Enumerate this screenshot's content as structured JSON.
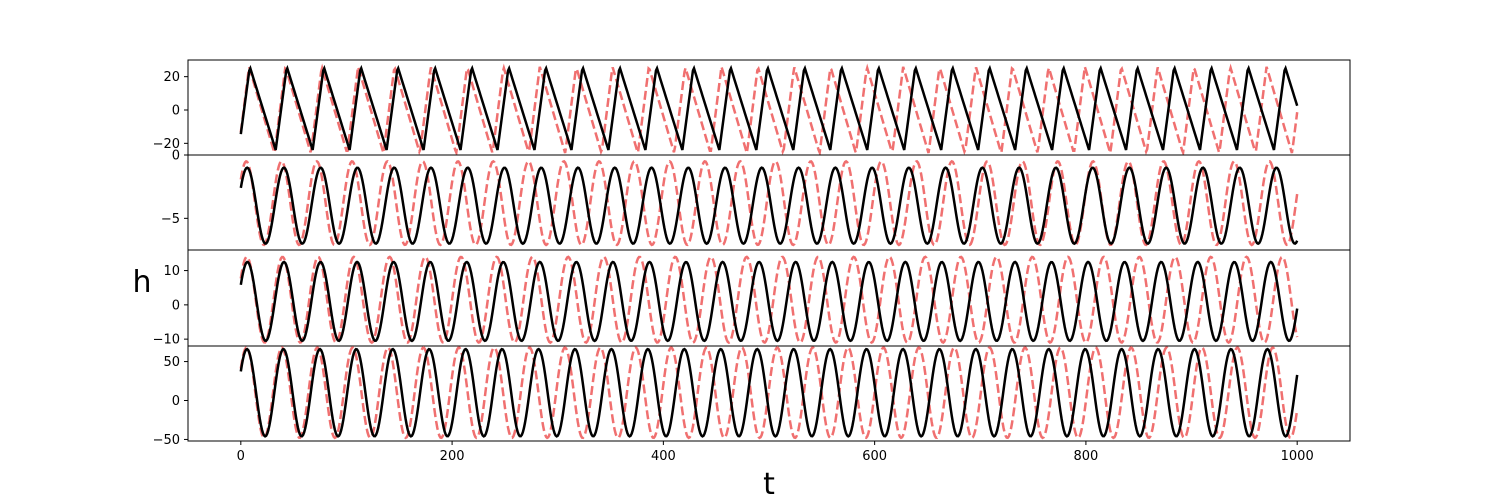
{
  "chart_data": {
    "type": "line",
    "ylabel": "h",
    "xlabel": "t",
    "xlim": [
      -50,
      1050
    ],
    "xticks": [
      0,
      200,
      400,
      600,
      800,
      1000
    ],
    "series_styles": {
      "reference": {
        "color": "#f07070",
        "dash": "dashed"
      },
      "prediction": {
        "color": "#000000",
        "dash": "solid"
      }
    },
    "panels": [
      {
        "ylim": [
          -27,
          30
        ],
        "yticks": [
          -20,
          0,
          20
        ],
        "reference": {
          "period": 34.4,
          "phase": 2.5,
          "amp": 26,
          "offset": 0,
          "shape": "saw",
          "start": 0
        },
        "prediction": {
          "period": 35.0,
          "phase": 2.0,
          "amp": 25,
          "offset": 1,
          "shape": "saw",
          "start": 0
        }
      },
      {
        "ylim": [
          -7.5,
          0
        ],
        "yticks": [
          -5,
          0
        ],
        "reference": {
          "period": 33.4,
          "phase": 3.2,
          "amp": 3.3,
          "offset": -3.8,
          "shape": "sine",
          "start": 0
        },
        "prediction": {
          "period": 34.8,
          "phase": 2.7,
          "amp": 3.0,
          "offset": -4.0,
          "shape": "sine",
          "start": 0
        }
      },
      {
        "ylim": [
          -12,
          16
        ],
        "yticks": [
          -10,
          0,
          10
        ],
        "reference": {
          "period": 33.8,
          "phase": 2.8,
          "amp": 12.5,
          "offset": 1.5,
          "shape": "sine",
          "start": 0
        },
        "prediction": {
          "period": 34.6,
          "phase": 2.4,
          "amp": 11.5,
          "offset": 1.0,
          "shape": "sine",
          "start": 0
        }
      },
      {
        "ylim": [
          -52,
          70
        ],
        "yticks": [
          -50,
          0,
          50
        ],
        "reference": {
          "period": 33.5,
          "phase": 3.0,
          "amp": 58,
          "offset": 10,
          "shape": "sine",
          "start": 0
        },
        "prediction": {
          "period": 34.5,
          "phase": 2.8,
          "amp": 56,
          "offset": 10,
          "shape": "sine",
          "start": 0
        }
      }
    ]
  }
}
